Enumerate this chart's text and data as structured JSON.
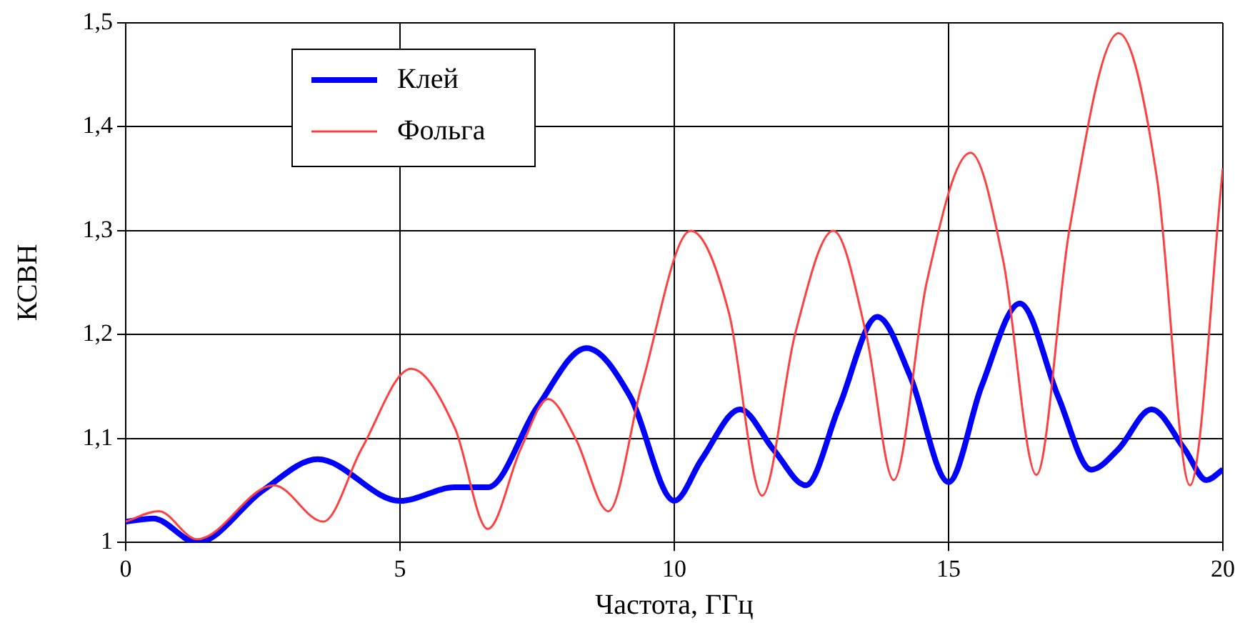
{
  "chart_data": {
    "type": "line",
    "xlabel": "Частота, ГГц",
    "ylabel": "КСВН",
    "xlim": [
      0,
      20
    ],
    "xticks": [
      0,
      5,
      10,
      15,
      20
    ],
    "ylim": [
      1,
      1.5
    ],
    "yticks": [
      1,
      {
        "value": 1.1,
        "label": "1,1"
      },
      {
        "value": 1.2,
        "label": "1,2"
      },
      {
        "value": 1.3,
        "label": "1,3"
      },
      {
        "value": 1.4,
        "label": "1,4"
      },
      {
        "value": 1.5,
        "label": "1,5"
      }
    ],
    "grid": true,
    "legend": "top left",
    "marker": "none",
    "line_style": "solid",
    "series": [
      {
        "name": "Клей",
        "color": "#0000ff",
        "x": [
          0,
          0.5,
          1.3,
          2.5,
          3.5,
          5,
          6,
          6.6,
          7.5,
          8.4,
          9.2,
          10,
          10.5,
          11.2,
          11.8,
          12.4,
          13,
          13.7,
          14.3,
          15,
          15.6,
          16.3,
          17,
          17.6,
          18.1,
          18.7,
          19.3,
          19.7,
          20
        ],
        "values": [
          1.02,
          1.023,
          1.0,
          1.05,
          1.08,
          1.04,
          1.053,
          1.053,
          1.13,
          1.187,
          1.14,
          1.04,
          1.08,
          1.128,
          1.09,
          1.055,
          1.13,
          1.217,
          1.16,
          1.058,
          1.15,
          1.23,
          1.14,
          1.07,
          1.09,
          1.128,
          1.09,
          1.06,
          1.07
        ]
      },
      {
        "name": "Фольга",
        "color": "#ff4040",
        "x": [
          0,
          0.6,
          1.3,
          2.7,
          3.6,
          4.3,
          5.2,
          6,
          6.6,
          7.2,
          7.7,
          8.2,
          8.8,
          9.4,
          10.3,
          11,
          11.6,
          12.2,
          12.9,
          13.5,
          14,
          14.6,
          15.4,
          16,
          16.6,
          17.2,
          18.1,
          18.8,
          19.4,
          20
        ],
        "values": [
          1.02,
          1.03,
          1.003,
          1.055,
          1.02,
          1.09,
          1.167,
          1.11,
          1.013,
          1.09,
          1.138,
          1.1,
          1.03,
          1.15,
          1.3,
          1.22,
          1.045,
          1.2,
          1.3,
          1.2,
          1.06,
          1.25,
          1.375,
          1.27,
          1.065,
          1.3,
          1.49,
          1.35,
          1.055,
          1.36
        ]
      }
    ]
  }
}
